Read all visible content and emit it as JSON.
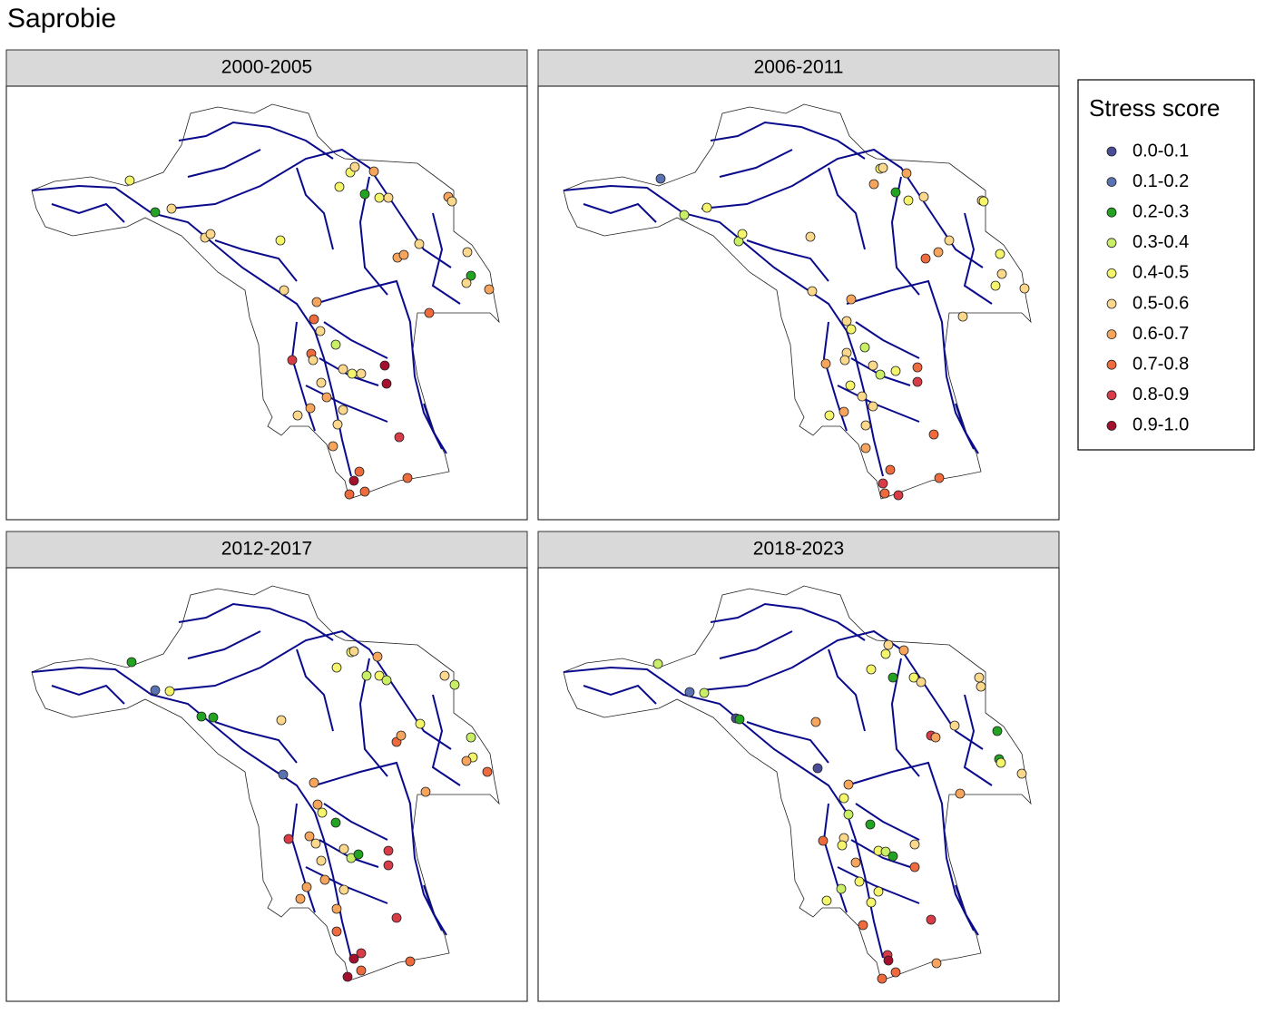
{
  "title": "Saprobie",
  "panels": [
    {
      "title": "2000-2005"
    },
    {
      "title": "2006-2011"
    },
    {
      "title": "2012-2017"
    },
    {
      "title": "2018-2023"
    }
  ],
  "legend": {
    "title": "Stress score",
    "items": [
      {
        "label": "0.0-0.1",
        "color": "#4a4c96"
      },
      {
        "label": "0.1-0.2",
        "color": "#5a72b2"
      },
      {
        "label": "0.2-0.3",
        "color": "#22a322"
      },
      {
        "label": "0.3-0.4",
        "color": "#c9ef66"
      },
      {
        "label": "0.4-0.5",
        "color": "#f5f56c"
      },
      {
        "label": "0.5-0.6",
        "color": "#fcd88c"
      },
      {
        "label": "0.6-0.7",
        "color": "#f7a55c"
      },
      {
        "label": "0.7-0.8",
        "color": "#ef6b3d"
      },
      {
        "label": "0.8-0.9",
        "color": "#d93b47"
      },
      {
        "label": "0.9-1.0",
        "color": "#a5102f"
      }
    ]
  }
}
